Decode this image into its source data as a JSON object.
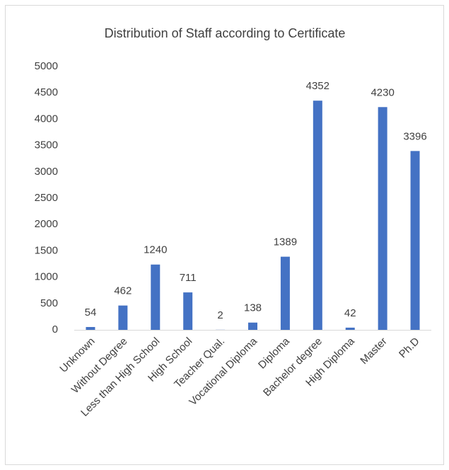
{
  "chart_data": {
    "type": "bar",
    "title": "Distribution of Staff according to Certificate",
    "categories": [
      "Unknown",
      "Without Degree",
      "Less than High School",
      "High School",
      "Teacher Qual.",
      "Vocational Diploma",
      "Diploma",
      "Bachelor degree",
      "High Diploma",
      "Master",
      "Ph.D"
    ],
    "values": [
      54,
      462,
      1240,
      711,
      2,
      138,
      1389,
      4352,
      42,
      4230,
      3396
    ],
    "color": "#4472c4",
    "ylim": [
      0,
      5000
    ],
    "yticks": [
      0,
      500,
      1000,
      1500,
      2000,
      2500,
      3000,
      3500,
      4000,
      4500,
      5000
    ],
    "grid": false
  }
}
